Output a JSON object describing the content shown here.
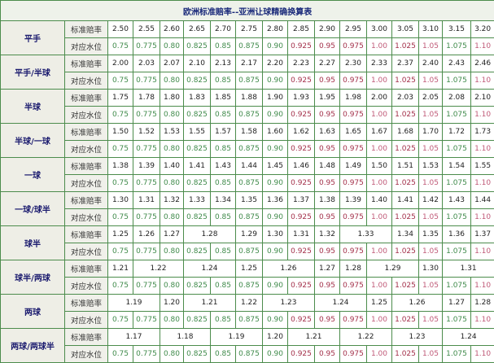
{
  "title": "欧洲标准赔率--亚洲让球精确换算表",
  "row_labels": {
    "odds": "标准赔率",
    "water": "对应水位"
  },
  "water_levels": [
    "0.75",
    "0.775",
    "0.80",
    "0.825",
    "0.85",
    "0.875",
    "0.90",
    "0.925",
    "0.95",
    "0.975",
    "1.00",
    "1.025",
    "1.05",
    "1.075",
    "1.10"
  ],
  "water_colors": [
    "green",
    "green",
    "green",
    "green",
    "green",
    "green",
    "green",
    "red",
    "red",
    "red",
    "pink",
    "red",
    "pink",
    "green",
    "pink"
  ],
  "colors": {
    "border": "#4c8c4c",
    "green_text": "#3f8a4a",
    "red_text": "#a3304a",
    "label_text": "#1a1a6e"
  },
  "groups": [
    {
      "label": "平手",
      "odds": [
        {
          "v": "2.50"
        },
        {
          "v": "2.55"
        },
        {
          "v": "2.60"
        },
        {
          "v": "2.65"
        },
        {
          "v": "2.70"
        },
        {
          "v": "2.75"
        },
        {
          "v": "2.80"
        },
        {
          "v": "2.85"
        },
        {
          "v": "2.90"
        },
        {
          "v": "2.95"
        },
        {
          "v": "3.00"
        },
        {
          "v": "3.05"
        },
        {
          "v": "3.10"
        },
        {
          "v": "3.15"
        },
        {
          "v": "3.20"
        }
      ]
    },
    {
      "label": "平手/半球",
      "odds": [
        {
          "v": "2.00"
        },
        {
          "v": "2.03"
        },
        {
          "v": "2.07"
        },
        {
          "v": "2.10"
        },
        {
          "v": "2.13"
        },
        {
          "v": "2.17"
        },
        {
          "v": "2.20"
        },
        {
          "v": "2.23"
        },
        {
          "v": "2.27"
        },
        {
          "v": "2.30"
        },
        {
          "v": "2.33"
        },
        {
          "v": "2.37"
        },
        {
          "v": "2.40"
        },
        {
          "v": "2.43"
        },
        {
          "v": "2.46"
        }
      ]
    },
    {
      "label": "半球",
      "odds": [
        {
          "v": "1.75"
        },
        {
          "v": "1.78"
        },
        {
          "v": "1.80"
        },
        {
          "v": "1.83"
        },
        {
          "v": "1.85"
        },
        {
          "v": "1.88"
        },
        {
          "v": "1.90"
        },
        {
          "v": "1.93"
        },
        {
          "v": "1.95"
        },
        {
          "v": "1.98"
        },
        {
          "v": "2.00"
        },
        {
          "v": "2.03"
        },
        {
          "v": "2.05"
        },
        {
          "v": "2.08"
        },
        {
          "v": "2.10"
        }
      ]
    },
    {
      "label": "半球/一球",
      "odds": [
        {
          "v": "1.50"
        },
        {
          "v": "1.52"
        },
        {
          "v": "1.53"
        },
        {
          "v": "1.55"
        },
        {
          "v": "1.57"
        },
        {
          "v": "1.58"
        },
        {
          "v": "1.60"
        },
        {
          "v": "1.62"
        },
        {
          "v": "1.63"
        },
        {
          "v": "1.65"
        },
        {
          "v": "1.67"
        },
        {
          "v": "1.68"
        },
        {
          "v": "1.70"
        },
        {
          "v": "1.72"
        },
        {
          "v": "1.73"
        }
      ]
    },
    {
      "label": "一球",
      "odds": [
        {
          "v": "1.38"
        },
        {
          "v": "1.39"
        },
        {
          "v": "1.40"
        },
        {
          "v": "1.41"
        },
        {
          "v": "1.43"
        },
        {
          "v": "1.44"
        },
        {
          "v": "1.45"
        },
        {
          "v": "1.46"
        },
        {
          "v": "1.48"
        },
        {
          "v": "1.49"
        },
        {
          "v": "1.50"
        },
        {
          "v": "1.51"
        },
        {
          "v": "1.53"
        },
        {
          "v": "1.54"
        },
        {
          "v": "1.55"
        }
      ]
    },
    {
      "label": "一球/球半",
      "odds": [
        {
          "v": "1.30"
        },
        {
          "v": "1.31"
        },
        {
          "v": "1.32"
        },
        {
          "v": "1.33"
        },
        {
          "v": "1.34"
        },
        {
          "v": "1.35"
        },
        {
          "v": "1.36"
        },
        {
          "v": "1.37"
        },
        {
          "v": "1.38"
        },
        {
          "v": "1.39"
        },
        {
          "v": "1.40"
        },
        {
          "v": "1.41"
        },
        {
          "v": "1.42"
        },
        {
          "v": "1.43"
        },
        {
          "v": "1.44"
        }
      ]
    },
    {
      "label": "球半",
      "odds": [
        {
          "v": "1.25"
        },
        {
          "v": "1.26"
        },
        {
          "v": "1.27"
        },
        {
          "v": "1.28",
          "span": 2
        },
        {
          "v": "1.29"
        },
        {
          "v": "1.30"
        },
        {
          "v": "1.31"
        },
        {
          "v": "1.32"
        },
        {
          "v": "1.33",
          "span": 2
        },
        {
          "v": "1.34"
        },
        {
          "v": "1.35"
        },
        {
          "v": "1.36"
        },
        {
          "v": "1.37"
        }
      ]
    },
    {
      "label": "球半/两球",
      "odds": [
        {
          "v": "1.21"
        },
        {
          "v": "1.22",
          "span": 2
        },
        {
          "v": "1.24",
          "span": 2
        },
        {
          "v": "1.25"
        },
        {
          "v": "1.26",
          "span": 2
        },
        {
          "v": "1.27"
        },
        {
          "v": "1.28"
        },
        {
          "v": "1.29",
          "span": 2
        },
        {
          "v": "1.30"
        },
        {
          "v": "1.31",
          "span": 2
        }
      ]
    },
    {
      "label": "两球",
      "odds": [
        {
          "v": "1.19",
          "span": 2
        },
        {
          "v": "1.20"
        },
        {
          "v": "1.21",
          "span": 2
        },
        {
          "v": "1.22"
        },
        {
          "v": "1.23",
          "span": 2
        },
        {
          "v": "1.24",
          "span": 2
        },
        {
          "v": "1.25"
        },
        {
          "v": "1.26",
          "span": 2
        },
        {
          "v": "1.27"
        },
        {
          "v": "1.28"
        }
      ]
    },
    {
      "label": "两球/两球半",
      "odds": [
        {
          "v": "1.17",
          "span": 2
        },
        {
          "v": "1.18",
          "span": 2
        },
        {
          "v": "1.19",
          "span": 2
        },
        {
          "v": "1.20"
        },
        {
          "v": "1.21",
          "span": 2
        },
        {
          "v": "1.22",
          "span": 2
        },
        {
          "v": "1.23",
          "span": 2
        },
        {
          "v": "1.24",
          "span": 2
        }
      ]
    }
  ]
}
